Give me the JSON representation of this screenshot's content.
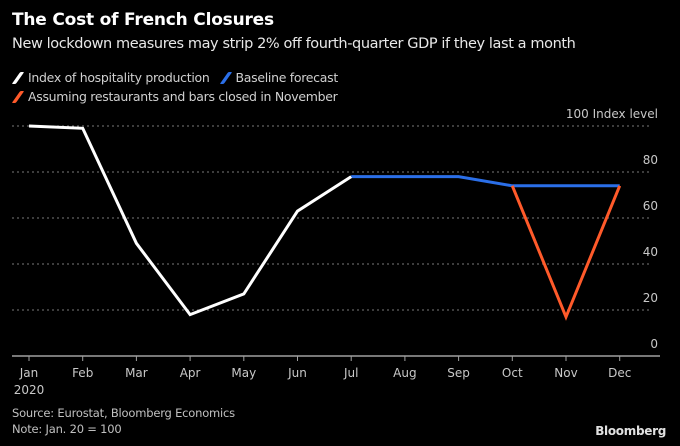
{
  "header": {
    "title": "The Cost of French Closures",
    "subtitle": "New lockdown measures may strip 2% off fourth-quarter GDP if they last a month"
  },
  "legend": [
    {
      "label": "Index of hospitality production",
      "color": "#ffffff"
    },
    {
      "label": "Baseline forecast",
      "color": "#2b6fe8"
    },
    {
      "label": "Assuming restaurants and bars closed in November",
      "color": "#ff5a2a"
    }
  ],
  "footer": {
    "source": "Source: Eurostat, Bloomberg Economics",
    "note": "Note: Jan. 20 = 100",
    "brand": "Bloomberg"
  },
  "chart_data": {
    "type": "line",
    "title": "The Cost of French Closures",
    "subtitle": "New lockdown measures may strip 2% off fourth-quarter GDP if they last a month",
    "xlabel": "",
    "ylabel": "Index level",
    "y_unit_label": "100 Index level",
    "categories": [
      "Jan",
      "Feb",
      "Mar",
      "Apr",
      "May",
      "Jun",
      "Jul",
      "Aug",
      "Sep",
      "Oct",
      "Nov",
      "Dec"
    ],
    "x_sublabel": {
      "Jan": "2020"
    },
    "yticks": [
      0,
      20,
      40,
      60,
      80,
      100
    ],
    "ytick_labels": [
      "0",
      "20",
      "40",
      "60",
      "80",
      "100 Index level"
    ],
    "ylim": [
      0,
      100
    ],
    "grid": true,
    "y_axis_side": "right",
    "legend_position": "top-left",
    "series": [
      {
        "name": "Index of hospitality production",
        "color": "#ffffff",
        "values": [
          100,
          99,
          49,
          18,
          27,
          63,
          78,
          null,
          null,
          null,
          null,
          null
        ]
      },
      {
        "name": "Baseline forecast",
        "color": "#2b6fe8",
        "values": [
          null,
          null,
          null,
          null,
          null,
          null,
          78,
          78,
          78,
          74,
          74,
          74
        ]
      },
      {
        "name": "Assuming restaurants and bars closed in November",
        "color": "#ff5a2a",
        "values": [
          null,
          null,
          null,
          null,
          null,
          null,
          null,
          null,
          null,
          74,
          17,
          74
        ]
      }
    ]
  }
}
